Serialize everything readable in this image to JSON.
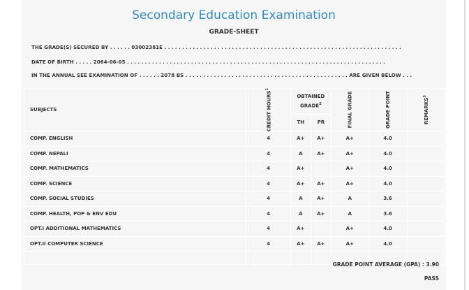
{
  "header": {
    "title": "Secondary Education Examination",
    "subtitle": "GRADE-SHEET"
  },
  "info": {
    "grades_secured_label": "THE GRADE(S) SECURED BY",
    "symbol_number": "03002381E",
    "dob_label": "DATE OF BIRTH",
    "dob_value": "2064-06-05",
    "exam_label": "IN THE ANNUAL SEE EXAMINATION OF",
    "exam_year": "2078 BS",
    "given_below": "ARE GIVEN BELOW"
  },
  "table": {
    "headers": {
      "subjects": "SUBJECTS",
      "credit_hours": "CREDIT HOURS",
      "credit_sup": "1",
      "obtained_grade": "OBTAINED GRADE",
      "obtained_sup": "2",
      "th": "TH",
      "pr": "PR",
      "final_grade": "FINAL GRADE",
      "grade_point": "GRADE POINT",
      "remarks": "REMARKS",
      "remarks_sup": "3"
    },
    "rows": [
      {
        "subject": "COMP. ENGLISH",
        "credit": "4",
        "th": "A+",
        "pr": "A+",
        "final": "A+",
        "gp": "4.0"
      },
      {
        "subject": "COMP. NEPALI",
        "credit": "4",
        "th": "A",
        "pr": "A+",
        "final": "A+",
        "gp": "4.0"
      },
      {
        "subject": "COMP. MATHEMATICS",
        "credit": "4",
        "th": "A+",
        "pr": "",
        "final": "A+",
        "gp": "4.0"
      },
      {
        "subject": "COMP. SCIENCE",
        "credit": "4",
        "th": "A+",
        "pr": "A+",
        "final": "A+",
        "gp": "4.0"
      },
      {
        "subject": "COMP. SOCIAL STUDIES",
        "credit": "4",
        "th": "A",
        "pr": "A+",
        "final": "A",
        "gp": "3.6"
      },
      {
        "subject": "COMP. HEALTH, POP & ENV EDU",
        "credit": "4",
        "th": "A",
        "pr": "A+",
        "final": "A",
        "gp": "3.6"
      },
      {
        "subject": "OPT.I ADDITIONAL MATHEMATICS",
        "credit": "4",
        "th": "A+",
        "pr": "",
        "final": "A+",
        "gp": "4.0"
      },
      {
        "subject": "OPT.II COMPUTER SCIENCE",
        "credit": "4",
        "th": "A+",
        "pr": "A+",
        "final": "A+",
        "gp": "4.0"
      }
    ]
  },
  "summary": {
    "gpa_label": "GRADE POINT AVERAGE (GPA) :",
    "gpa_value": "3.90",
    "result": "PASS"
  }
}
